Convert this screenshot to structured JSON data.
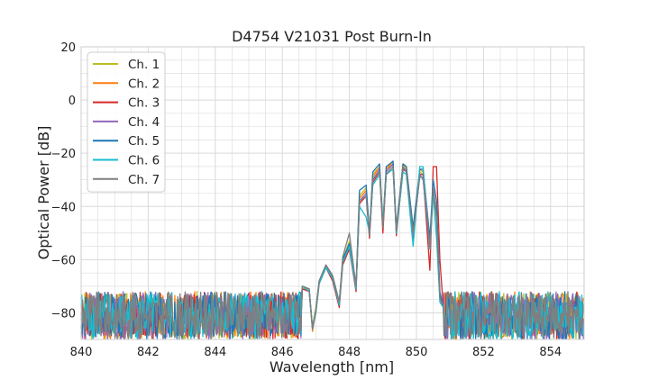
{
  "chart_data": {
    "type": "line",
    "title": "D4754 V21031 Post Burn-In",
    "xlabel": "Wavelength [nm]",
    "ylabel": "Optical Power [dB]",
    "xlim": [
      840,
      855
    ],
    "ylim": [
      -90,
      20
    ],
    "xticks": [
      840,
      842,
      844,
      846,
      848,
      850,
      852,
      854
    ],
    "yticks": [
      20,
      0,
      -20,
      -40,
      -60,
      -80
    ],
    "xtick_labels": [
      "840",
      "842",
      "844",
      "846",
      "848",
      "850",
      "852",
      "854"
    ],
    "ytick_labels": [
      "20",
      "0",
      "−20",
      "−40",
      "−60",
      "−80"
    ],
    "grid": true,
    "minor_grid": true,
    "legend_position": "top-left",
    "noise_floor_db": [
      -90,
      -72
    ],
    "series": [
      {
        "name": "Ch. 1",
        "color": "#bcbd22",
        "x": [
          840,
          846.6,
          846.8,
          846.9,
          847.0,
          847.1,
          847.3,
          847.5,
          847.7,
          847.8,
          848.0,
          848.2,
          848.3,
          848.5,
          848.6,
          848.7,
          848.9,
          849.0,
          849.1,
          849.3,
          849.4,
          849.6,
          849.7,
          849.9,
          850.1,
          850.2,
          850.4,
          850.5,
          850.6,
          850.7,
          850.8,
          855
        ],
        "y": [
          -78,
          -70,
          -71,
          -85,
          -78,
          -68,
          -62,
          -66,
          -76,
          -60,
          -53,
          -70,
          -36,
          -33,
          -50,
          -28,
          -25,
          -46,
          -26,
          -24,
          -48,
          -24,
          -26,
          -48,
          -27,
          -28,
          -52,
          -35,
          -45,
          -74,
          -78,
          -78
        ]
      },
      {
        "name": "Ch. 2",
        "color": "#ff7f0e",
        "x": [
          840,
          846.6,
          846.8,
          846.9,
          847.0,
          847.1,
          847.3,
          847.5,
          847.7,
          847.8,
          848.0,
          848.2,
          848.3,
          848.5,
          848.6,
          848.7,
          848.9,
          849.0,
          849.1,
          849.3,
          849.4,
          849.6,
          849.7,
          849.9,
          850.1,
          850.2,
          850.4,
          850.5,
          850.6,
          850.7,
          850.8,
          855
        ],
        "y": [
          -78,
          -71,
          -71,
          -87,
          -79,
          -69,
          -62,
          -67,
          -77,
          -61,
          -55,
          -71,
          -37,
          -34,
          -51,
          -29,
          -25,
          -48,
          -26,
          -23,
          -49,
          -24,
          -25,
          -49,
          -26,
          -27,
          -54,
          -34,
          -42,
          -75,
          -78,
          -78
        ]
      },
      {
        "name": "Ch. 3",
        "color": "#d62728",
        "x": [
          840,
          846.6,
          846.8,
          846.9,
          847.0,
          847.1,
          847.3,
          847.5,
          847.7,
          847.8,
          848.0,
          848.2,
          848.3,
          848.5,
          848.6,
          848.7,
          848.9,
          849.0,
          849.1,
          849.3,
          849.4,
          849.6,
          849.7,
          849.9,
          850.1,
          850.2,
          850.4,
          850.5,
          850.6,
          850.7,
          850.8,
          855
        ],
        "y": [
          -78,
          -71,
          -72,
          -86,
          -80,
          -69,
          -63,
          -68,
          -78,
          -62,
          -56,
          -72,
          -39,
          -36,
          -52,
          -31,
          -27,
          -50,
          -27,
          -24,
          -51,
          -26,
          -27,
          -52,
          -28,
          -28,
          -64,
          -25,
          -25,
          -60,
          -78,
          -78
        ]
      },
      {
        "name": "Ch. 4",
        "color": "#9467bd",
        "x": [
          840,
          846.6,
          846.8,
          846.9,
          847.0,
          847.1,
          847.3,
          847.5,
          847.7,
          847.8,
          848.0,
          848.2,
          848.3,
          848.5,
          848.6,
          848.7,
          848.9,
          849.0,
          849.1,
          849.3,
          849.4,
          849.6,
          849.7,
          849.9,
          850.1,
          850.2,
          850.4,
          850.5,
          850.6,
          850.7,
          850.8,
          855
        ],
        "y": [
          -78,
          -70,
          -72,
          -86,
          -79,
          -68,
          -62,
          -67,
          -77,
          -60,
          -55,
          -71,
          -38,
          -35,
          -51,
          -30,
          -26,
          -47,
          -27,
          -24,
          -50,
          -25,
          -27,
          -51,
          -28,
          -30,
          -56,
          -33,
          -43,
          -74,
          -78,
          -78
        ]
      },
      {
        "name": "Ch. 5",
        "color": "#1f77b4",
        "x": [
          840,
          846.6,
          846.8,
          846.9,
          847.0,
          847.1,
          847.3,
          847.5,
          847.7,
          847.8,
          848.0,
          848.2,
          848.3,
          848.5,
          848.6,
          848.7,
          848.9,
          849.0,
          849.1,
          849.3,
          849.4,
          849.6,
          849.7,
          849.9,
          850.1,
          850.2,
          850.4,
          850.5,
          850.6,
          850.7,
          850.8,
          855
        ],
        "y": [
          -78,
          -70,
          -71,
          -86,
          -79,
          -68,
          -62,
          -66,
          -76,
          -60,
          -54,
          -70,
          -34,
          -32,
          -50,
          -27,
          -24,
          -47,
          -25,
          -23,
          -48,
          -24,
          -25,
          -48,
          -26,
          -26,
          -52,
          -30,
          -38,
          -72,
          -78,
          -78
        ]
      },
      {
        "name": "Ch. 6",
        "color": "#17becf",
        "x": [
          840,
          846.6,
          846.8,
          846.9,
          847.0,
          847.1,
          847.3,
          847.5,
          847.7,
          847.8,
          848.0,
          848.2,
          848.3,
          848.5,
          848.6,
          848.7,
          848.9,
          849.0,
          849.1,
          849.3,
          849.4,
          849.6,
          849.7,
          849.9,
          850.1,
          850.2,
          850.4,
          850.5,
          850.6,
          850.7,
          850.8,
          855
        ],
        "y": [
          -78,
          -70,
          -72,
          -86,
          -80,
          -69,
          -63,
          -67,
          -77,
          -61,
          -55,
          -71,
          -40,
          -44,
          -50,
          -32,
          -28,
          -46,
          -28,
          -26,
          -50,
          -27,
          -28,
          -55,
          -25,
          -25,
          -56,
          -35,
          -52,
          -76,
          -78,
          -78
        ]
      },
      {
        "name": "Ch. 7",
        "color": "#7f7f7f",
        "x": [
          840,
          846.6,
          846.8,
          846.9,
          847.0,
          847.1,
          847.3,
          847.5,
          847.7,
          847.8,
          848.0,
          848.2,
          848.3,
          848.5,
          848.6,
          848.7,
          848.9,
          849.0,
          849.1,
          849.3,
          849.4,
          849.6,
          849.7,
          849.9,
          850.1,
          850.2,
          850.4,
          850.5,
          850.6,
          850.7,
          850.8,
          855
        ],
        "y": [
          -78,
          -70,
          -71,
          -86,
          -79,
          -68,
          -62,
          -66,
          -76,
          -59,
          -50,
          -70,
          -38,
          -36,
          -51,
          -30,
          -27,
          -48,
          -28,
          -25,
          -49,
          -25,
          -27,
          -50,
          -29,
          -29,
          -55,
          -33,
          -44,
          -74,
          -78,
          -78
        ]
      }
    ]
  }
}
